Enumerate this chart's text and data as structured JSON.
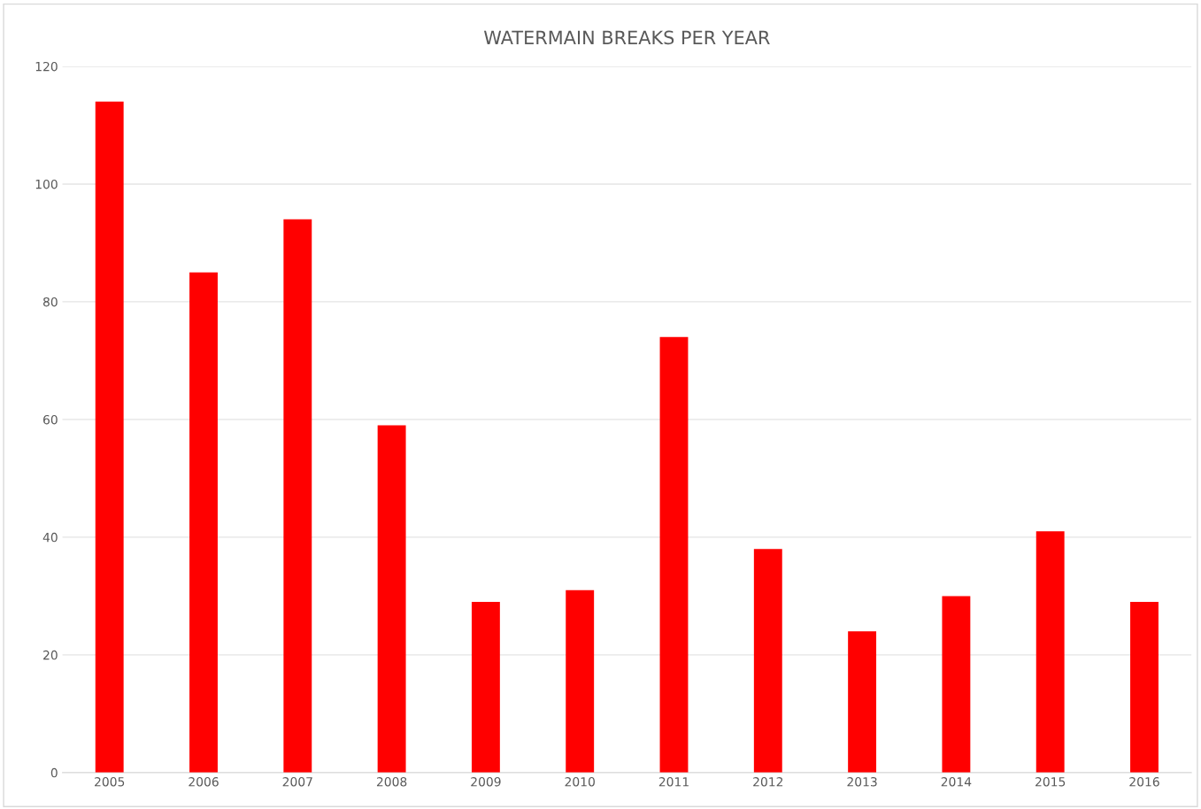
{
  "chart_data": {
    "type": "bar",
    "title": "WATERMAIN BREAKS PER YEAR",
    "categories": [
      "2005",
      "2006",
      "2007",
      "2008",
      "2009",
      "2010",
      "2011",
      "2012",
      "2013",
      "2014",
      "2015",
      "2016"
    ],
    "values": [
      114,
      85,
      94,
      59,
      29,
      31,
      74,
      38,
      24,
      30,
      41,
      29
    ],
    "color": "#ff0000",
    "ylim": [
      0,
      120
    ],
    "yticks": [
      0,
      20,
      40,
      60,
      80,
      100,
      120
    ],
    "grid": "y"
  }
}
